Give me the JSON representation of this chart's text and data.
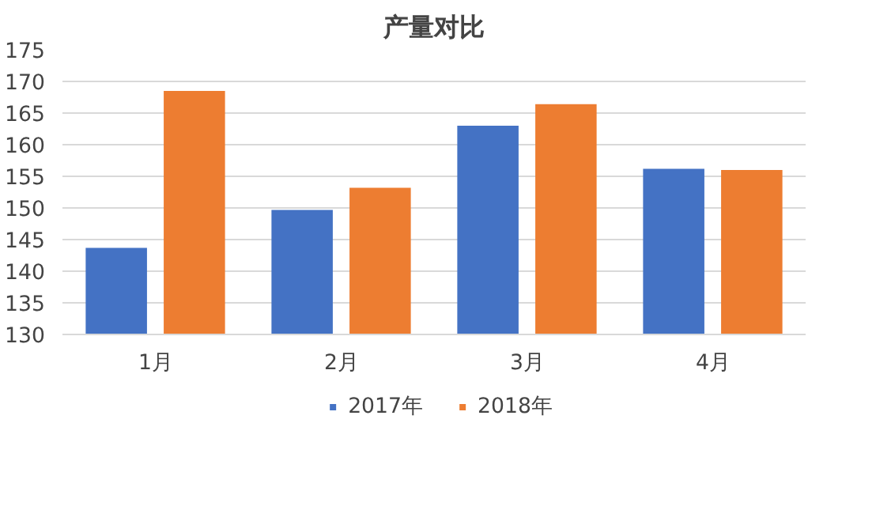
{
  "chart_data": {
    "type": "bar",
    "title": "产量对比",
    "categories": [
      "1月",
      "2月",
      "3月",
      "4月"
    ],
    "series": [
      {
        "name": "2017年",
        "color": "#4472c4",
        "values": [
          143.7,
          149.7,
          163.0,
          156.2
        ]
      },
      {
        "name": "2018年",
        "color": "#ed7d31",
        "values": [
          168.5,
          153.2,
          166.4,
          156.0
        ]
      }
    ],
    "ylim": [
      130,
      175
    ],
    "yticks": [
      130,
      135,
      140,
      145,
      150,
      155,
      160,
      165,
      170,
      175
    ],
    "grid": "y",
    "legend": "bottom"
  }
}
